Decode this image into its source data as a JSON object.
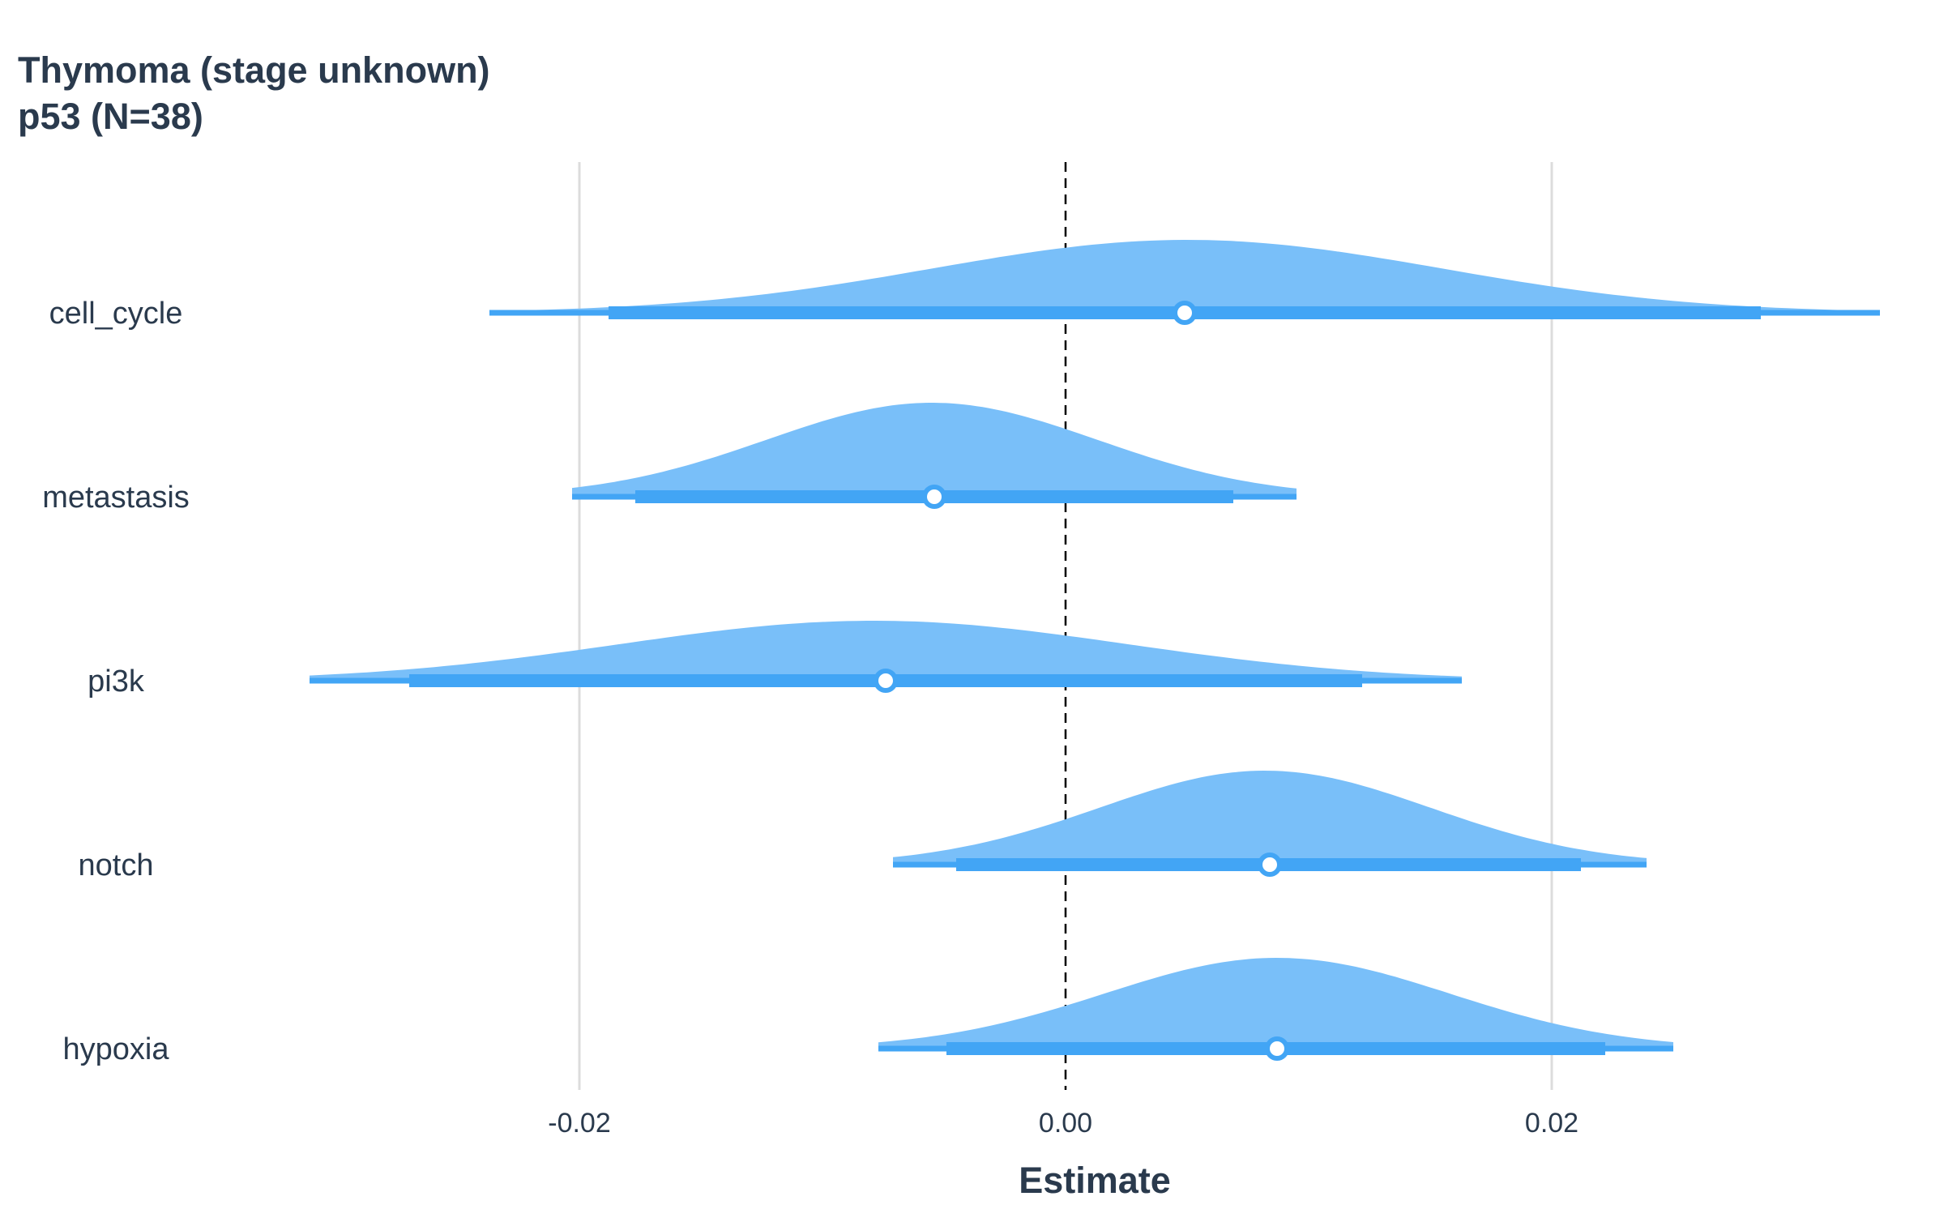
{
  "title": {
    "line1": "Thymoma (stage unknown)",
    "line2": "p53 (N=38)"
  },
  "chart_data": {
    "type": "halfeye",
    "xlabel": "Estimate",
    "xlim": [
      -0.0315,
      0.0335
    ],
    "xticks": [
      -0.02,
      0.0,
      0.02
    ],
    "xtick_labels": [
      "-0.02",
      "0.00",
      "0.02"
    ],
    "reference_line": 0.0,
    "grid": "vertical-major",
    "colors": {
      "density": "#79bff9",
      "interval": "#42a5f5",
      "point_fill": "#ffffff"
    },
    "rows": [
      {
        "category": "cell_cycle",
        "median": 0.0049,
        "ci_inner": [
          -0.0188,
          0.0286
        ],
        "ci_outer": [
          -0.0237,
          0.0335
        ],
        "mode": 0.005,
        "sd": 0.0105,
        "height": 0.45
      },
      {
        "category": "metastasis",
        "median": -0.0054,
        "ci_inner": [
          -0.0177,
          0.0069
        ],
        "ci_outer": [
          -0.0203,
          0.0095
        ],
        "mode": -0.0055,
        "sd": 0.0068,
        "height": 0.58
      },
      {
        "category": "pi3k",
        "median": -0.0074,
        "ci_inner": [
          -0.027,
          0.0122
        ],
        "ci_outer": [
          -0.0311,
          0.0163
        ],
        "mode": -0.0079,
        "sd": 0.0105,
        "height": 0.37
      },
      {
        "category": "notch",
        "median": 0.0084,
        "ci_inner": [
          -0.0045,
          0.0212
        ],
        "ci_outer": [
          -0.0071,
          0.0239
        ],
        "mode": 0.0082,
        "sd": 0.0068,
        "height": 0.58
      },
      {
        "category": "hypoxia",
        "median": 0.0087,
        "ci_inner": [
          -0.0049,
          0.0222
        ],
        "ci_outer": [
          -0.0077,
          0.025
        ],
        "mode": 0.0087,
        "sd": 0.0071,
        "height": 0.56
      }
    ]
  }
}
